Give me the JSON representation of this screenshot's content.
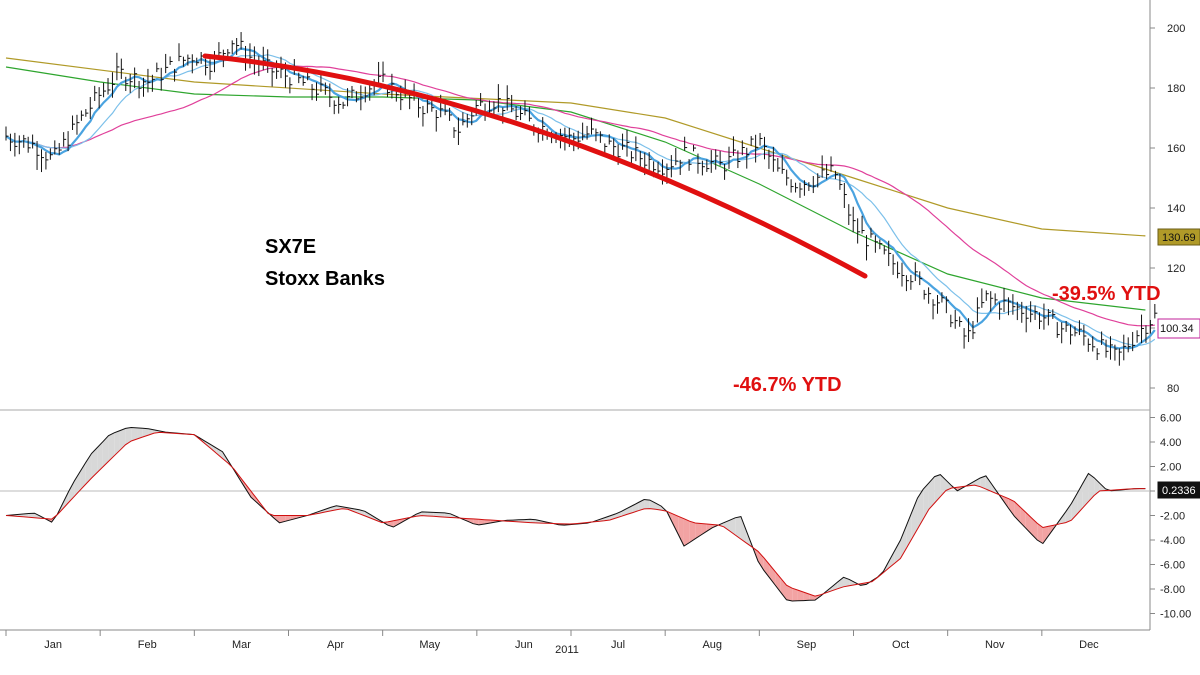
{
  "chart_data": [
    {
      "type": "ohlc",
      "title": "SX7E",
      "subtitle": "Stoxx Banks",
      "x_label": "2011",
      "months": [
        "Jan",
        "Feb",
        "Mar",
        "Apr",
        "May",
        "Jun",
        "Jul",
        "Aug",
        "Sep",
        "Oct",
        "Nov",
        "Dec"
      ],
      "ylim": [
        75,
        210
      ],
      "yticks": [
        80,
        100,
        120,
        140,
        160,
        180,
        200
      ],
      "price_close": [
        [
          0,
          164
        ],
        [
          0.3,
          161
        ],
        [
          0.5,
          156
        ],
        [
          0.8,
          170
        ],
        [
          1.0,
          178
        ],
        [
          1.2,
          185
        ],
        [
          1.5,
          182
        ],
        [
          1.8,
          188
        ],
        [
          2.0,
          191
        ],
        [
          2.2,
          188
        ],
        [
          2.4,
          196
        ],
        [
          2.6,
          190
        ],
        [
          2.8,
          186
        ],
        [
          3.0,
          184
        ],
        [
          3.2,
          181
        ],
        [
          3.4,
          178
        ],
        [
          3.6,
          175
        ],
        [
          3.8,
          180
        ],
        [
          4.0,
          182
        ],
        [
          4.2,
          178
        ],
        [
          4.4,
          174
        ],
        [
          4.6,
          172
        ],
        [
          4.8,
          166
        ],
        [
          5.0,
          174
        ],
        [
          5.2,
          176
        ],
        [
          5.4,
          172
        ],
        [
          5.6,
          168
        ],
        [
          5.8,
          166
        ],
        [
          6.0,
          163
        ],
        [
          6.2,
          165
        ],
        [
          6.4,
          161
        ],
        [
          6.6,
          159
        ],
        [
          6.8,
          156
        ],
        [
          7.0,
          154
        ],
        [
          7.2,
          158
        ],
        [
          7.4,
          156
        ],
        [
          7.6,
          154
        ],
        [
          7.8,
          158
        ],
        [
          8.0,
          162
        ],
        [
          8.2,
          152
        ],
        [
          8.4,
          148
        ],
        [
          8.6,
          150
        ],
        [
          8.8,
          152
        ],
        [
          9.0,
          134
        ],
        [
          9.2,
          128
        ],
        [
          9.4,
          122
        ],
        [
          9.6,
          118
        ],
        [
          9.8,
          112
        ],
        [
          10.0,
          106
        ],
        [
          10.2,
          96
        ],
        [
          10.4,
          110
        ],
        [
          10.6,
          108
        ],
        [
          10.8,
          106
        ],
        [
          11.0,
          104
        ],
        [
          11.2,
          100
        ],
        [
          11.4,
          98
        ],
        [
          11.6,
          94
        ],
        [
          11.8,
          90
        ],
        [
          12.0,
          98
        ],
        [
          12.2,
          104
        ]
      ],
      "ma_fast_blue": "declining with price",
      "moving_average_badges": [
        {
          "label": "130.69",
          "value": 130.69,
          "color": "#b09a28"
        },
        {
          "label": "100.34",
          "value": 100.34,
          "color": "#c2209a"
        }
      ],
      "annotations": [
        {
          "text": "-46.7% YTD",
          "color": "#e01010"
        },
        {
          "text": "-39.5% YTD",
          "color": "#e01010"
        }
      ]
    },
    {
      "type": "area",
      "name": "oscillator",
      "ylim": [
        -11,
        7
      ],
      "yticks": [
        6.0,
        4.0,
        2.0,
        0.0,
        -2.0,
        -4.0,
        -6.0,
        -8.0,
        -10.0
      ],
      "ytick_labels": [
        "6.00",
        "4.00",
        "2.00",
        "0.00",
        "-2.00",
        "-4.00",
        "-6.00",
        "-8.00",
        "-10.00"
      ],
      "last_value_label": "0.2336",
      "osc": [
        [
          0,
          -2.0
        ],
        [
          0.3,
          -1.8
        ],
        [
          0.5,
          -2.6
        ],
        [
          0.7,
          0.5
        ],
        [
          0.9,
          3.0
        ],
        [
          1.1,
          4.6
        ],
        [
          1.3,
          5.2
        ],
        [
          1.5,
          5.1
        ],
        [
          1.7,
          4.8
        ],
        [
          2.0,
          4.6
        ],
        [
          2.3,
          3.2
        ],
        [
          2.6,
          -0.5
        ],
        [
          2.9,
          -2.6
        ],
        [
          3.2,
          -2.0
        ],
        [
          3.5,
          -1.2
        ],
        [
          3.8,
          -1.6
        ],
        [
          4.1,
          -3.0
        ],
        [
          4.4,
          -1.7
        ],
        [
          4.7,
          -1.8
        ],
        [
          5.0,
          -2.8
        ],
        [
          5.3,
          -2.4
        ],
        [
          5.6,
          -2.3
        ],
        [
          5.9,
          -2.8
        ],
        [
          6.2,
          -2.6
        ],
        [
          6.5,
          -1.8
        ],
        [
          6.8,
          -0.6
        ],
        [
          7.0,
          -1.4
        ],
        [
          7.2,
          -4.5
        ],
        [
          7.5,
          -3.0
        ],
        [
          7.8,
          -2.0
        ],
        [
          8.0,
          -6.0
        ],
        [
          8.3,
          -9.0
        ],
        [
          8.6,
          -8.9
        ],
        [
          8.9,
          -7.0
        ],
        [
          9.1,
          -7.8
        ],
        [
          9.3,
          -6.8
        ],
        [
          9.5,
          -4.0
        ],
        [
          9.7,
          -0.2
        ],
        [
          9.9,
          1.5
        ],
        [
          10.1,
          0.0
        ],
        [
          10.4,
          1.3
        ],
        [
          10.7,
          -2.0
        ],
        [
          11.0,
          -4.4
        ],
        [
          11.3,
          -1.2
        ],
        [
          11.5,
          1.5
        ],
        [
          11.7,
          0.0
        ],
        [
          12.0,
          0.2
        ]
      ],
      "signal": [
        [
          0,
          -2.0
        ],
        [
          0.5,
          -2.3
        ],
        [
          0.9,
          1.0
        ],
        [
          1.3,
          4.0
        ],
        [
          1.6,
          4.8
        ],
        [
          2.0,
          4.6
        ],
        [
          2.4,
          2.0
        ],
        [
          2.8,
          -2.0
        ],
        [
          3.2,
          -2.0
        ],
        [
          3.6,
          -1.4
        ],
        [
          4.0,
          -2.6
        ],
        [
          4.4,
          -2.0
        ],
        [
          4.8,
          -2.2
        ],
        [
          5.2,
          -2.4
        ],
        [
          5.6,
          -2.6
        ],
        [
          6.0,
          -2.7
        ],
        [
          6.4,
          -2.4
        ],
        [
          6.8,
          -1.4
        ],
        [
          7.0,
          -1.6
        ],
        [
          7.3,
          -2.6
        ],
        [
          7.6,
          -2.8
        ],
        [
          8.0,
          -5.0
        ],
        [
          8.3,
          -7.8
        ],
        [
          8.6,
          -8.6
        ],
        [
          8.9,
          -7.8
        ],
        [
          9.2,
          -7.4
        ],
        [
          9.5,
          -5.5
        ],
        [
          9.8,
          -1.5
        ],
        [
          10.0,
          0.2
        ],
        [
          10.3,
          0.5
        ],
        [
          10.7,
          -0.8
        ],
        [
          11.0,
          -3.0
        ],
        [
          11.3,
          -2.5
        ],
        [
          11.6,
          0.0
        ],
        [
          12.0,
          0.2
        ]
      ]
    }
  ],
  "labels": {
    "title": "SX7E",
    "subtitle": "Stoxx Banks",
    "ytd_low": "-46.7% YTD",
    "ytd_now": "-39.5% YTD",
    "year": "2011",
    "badge_top": "130.69",
    "badge_mid": "100.34",
    "badge_osc": "0.2336"
  },
  "colors": {
    "price": "#111111",
    "ma_fast": "#4aa3e0",
    "ma_slow_blue": "#7cc0ea",
    "ma_pink": "#e0409a",
    "ma_green": "#2ea52e",
    "ma_olive": "#b09a28",
    "trend_line": "#e01010",
    "osc_up_fill": "#d8d8d8",
    "osc_down_fill": "#f2a3a3",
    "signal": "#d01010"
  }
}
